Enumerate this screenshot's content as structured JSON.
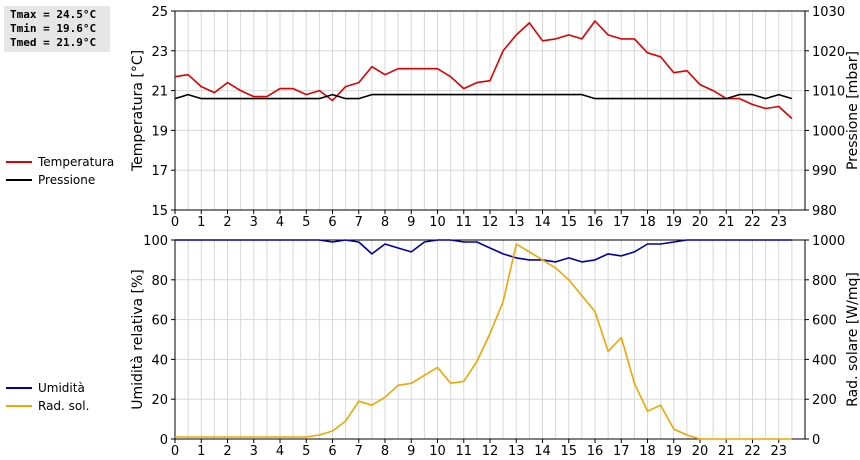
{
  "stats": {
    "tmax": "Tmax = 24.5°C",
    "tmin": "Tmin = 19.6°C",
    "tmed": "Tmed = 21.9°C"
  },
  "colors": {
    "temperature": "#dd0000",
    "pressure": "#000000",
    "humidity": "#0000aa",
    "radiation": "#f2a400",
    "grid": "#d8d8d8"
  },
  "chart_data": [
    {
      "type": "line",
      "x": [
        0,
        0.5,
        1,
        1.5,
        2,
        2.5,
        3,
        3.5,
        4,
        4.5,
        5,
        5.5,
        6,
        6.5,
        7,
        7.5,
        8,
        8.5,
        9,
        9.5,
        10,
        10.5,
        11,
        11.5,
        12,
        12.5,
        13,
        13.5,
        14,
        14.5,
        15,
        15.5,
        16,
        16.5,
        17,
        17.5,
        18,
        18.5,
        19,
        19.5,
        20,
        20.5,
        21,
        21.5,
        22,
        22.5,
        23,
        23.5
      ],
      "xticks": [
        "0",
        "1",
        "2",
        "3",
        "4",
        "5",
        "6",
        "7",
        "8",
        "9",
        "10",
        "11",
        "12",
        "13",
        "14",
        "15",
        "16",
        "17",
        "18",
        "19",
        "20",
        "21",
        "22",
        "23"
      ],
      "ylabel_left": "Temperatura [°C]",
      "ylabel_right": "Pressione [mbar]",
      "ylim_left": [
        15,
        25
      ],
      "yticks_left": [
        "15",
        "17",
        "19",
        "21",
        "23",
        "25"
      ],
      "ylim_right": [
        980,
        1030
      ],
      "yticks_right": [
        "980",
        "990",
        "1000",
        "1010",
        "1020",
        "1030"
      ],
      "grid": true,
      "legend": [
        "Temperatura",
        "Pressione"
      ],
      "series": [
        {
          "name": "Temperatura",
          "axis": "left",
          "values": [
            21.7,
            21.8,
            21.2,
            20.9,
            21.4,
            21.0,
            20.7,
            20.7,
            21.1,
            21.1,
            20.8,
            21.0,
            20.5,
            21.2,
            21.4,
            22.2,
            21.8,
            22.1,
            22.1,
            22.1,
            22.1,
            21.7,
            21.1,
            21.4,
            21.5,
            23.0,
            23.8,
            24.4,
            23.5,
            23.6,
            23.8,
            23.6,
            24.5,
            23.8,
            23.6,
            23.6,
            22.9,
            22.7,
            21.9,
            22.0,
            21.3,
            21.0,
            20.6,
            20.6,
            20.3,
            20.1,
            20.2,
            19.6
          ]
        },
        {
          "name": "Pressione",
          "axis": "right",
          "values": [
            1008,
            1009,
            1008,
            1008,
            1008,
            1008,
            1008,
            1008,
            1008,
            1008,
            1008,
            1008,
            1009,
            1008,
            1008,
            1009,
            1009,
            1009,
            1009,
            1009,
            1009,
            1009,
            1009,
            1009,
            1009,
            1009,
            1009,
            1009,
            1009,
            1009,
            1009,
            1009,
            1008,
            1008,
            1008,
            1008,
            1008,
            1008,
            1008,
            1008,
            1008,
            1008,
            1008,
            1009,
            1009,
            1008,
            1009,
            1008
          ]
        }
      ]
    },
    {
      "type": "line",
      "x": [
        0,
        0.5,
        1,
        1.5,
        2,
        2.5,
        3,
        3.5,
        4,
        4.5,
        5,
        5.5,
        6,
        6.5,
        7,
        7.5,
        8,
        8.5,
        9,
        9.5,
        10,
        10.5,
        11,
        11.5,
        12,
        12.5,
        13,
        13.5,
        14,
        14.5,
        15,
        15.5,
        16,
        16.5,
        17,
        17.5,
        18,
        18.5,
        19,
        19.5,
        20,
        20.5,
        21,
        21.5,
        22,
        22.5,
        23,
        23.5
      ],
      "xticks": [
        "0",
        "1",
        "2",
        "3",
        "4",
        "5",
        "6",
        "7",
        "8",
        "9",
        "10",
        "11",
        "12",
        "13",
        "14",
        "15",
        "16",
        "17",
        "18",
        "19",
        "20",
        "21",
        "22",
        "23"
      ],
      "ylabel_left": "Umidità relativa [%]",
      "ylabel_right": "Rad. solare [W/mq]",
      "ylim_left": [
        0,
        100
      ],
      "yticks_left": [
        "0",
        "20",
        "40",
        "60",
        "80",
        "100"
      ],
      "ylim_right": [
        0,
        1000
      ],
      "yticks_right": [
        "0",
        "200",
        "400",
        "600",
        "800",
        "1000"
      ],
      "grid": true,
      "legend": [
        "Umidità",
        "Rad. sol."
      ],
      "series": [
        {
          "name": "Umidità",
          "axis": "left",
          "values": [
            100,
            100,
            100,
            100,
            100,
            100,
            100,
            100,
            100,
            100,
            100,
            100,
            99,
            100,
            99,
            93,
            98,
            96,
            94,
            99,
            100,
            100,
            99,
            99,
            96,
            93,
            91,
            90,
            90,
            89,
            91,
            89,
            90,
            93,
            92,
            94,
            98,
            98,
            99,
            100,
            100,
            100,
            100,
            100,
            100,
            100,
            100,
            100
          ]
        },
        {
          "name": "Rad. sol.",
          "axis": "right",
          "values": [
            10,
            10,
            10,
            10,
            10,
            10,
            10,
            10,
            10,
            10,
            10,
            20,
            40,
            90,
            190,
            170,
            210,
            270,
            280,
            320,
            360,
            280,
            290,
            390,
            530,
            690,
            980,
            940,
            900,
            860,
            800,
            720,
            640,
            440,
            510,
            280,
            140,
            170,
            50,
            20,
            0,
            0,
            0,
            0,
            0,
            0,
            0,
            0
          ]
        }
      ]
    }
  ]
}
